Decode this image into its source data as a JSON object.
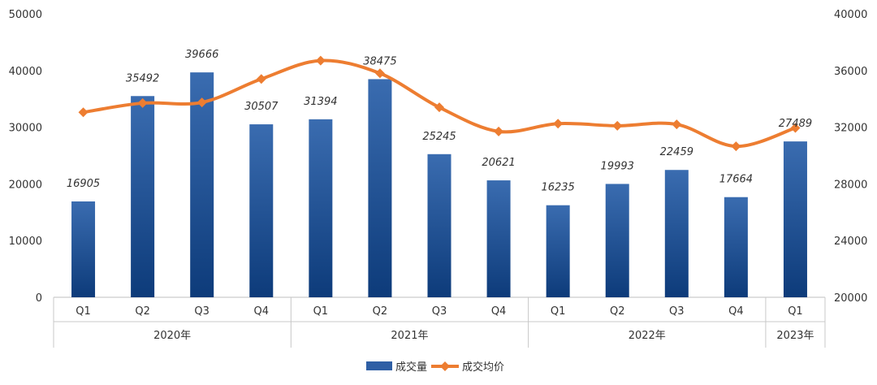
{
  "chart_data": {
    "type": "bar",
    "categories": [
      "Q1",
      "Q2",
      "Q3",
      "Q4",
      "Q1",
      "Q2",
      "Q3",
      "Q4",
      "Q1",
      "Q2",
      "Q3",
      "Q4",
      "Q1"
    ],
    "groups": [
      {
        "label": "2020年",
        "count": 4
      },
      {
        "label": "2021年",
        "count": 4
      },
      {
        "label": "2022年",
        "count": 4
      },
      {
        "label": "2023年",
        "count": 1
      }
    ],
    "series": [
      {
        "name": "成交量",
        "type": "bar",
        "axis": "left",
        "color": "#2f5fa5",
        "values": [
          16905,
          35492,
          39666,
          30507,
          31394,
          38475,
          25245,
          20621,
          16235,
          19993,
          22459,
          17664,
          27489
        ],
        "labels": [
          "16905",
          "35492",
          "39666",
          "30507",
          "31394",
          "38475",
          "25245",
          "20621",
          "16235",
          "19993",
          "22459",
          "17664",
          "27489"
        ]
      },
      {
        "name": "成交均价",
        "type": "line",
        "axis": "right",
        "color": "#ed7d31",
        "values": [
          33050,
          33700,
          33750,
          35400,
          36700,
          35800,
          33400,
          31700,
          32250,
          32100,
          32200,
          30650,
          31950
        ]
      }
    ],
    "y_left": {
      "min": 0,
      "max": 50000,
      "ticks": [
        "0",
        "10000",
        "20000",
        "30000",
        "40000",
        "50000"
      ]
    },
    "y_right": {
      "min": 20000,
      "max": 40000,
      "ticks": [
        "20000",
        "24000",
        "28000",
        "32000",
        "36000",
        "40000"
      ]
    },
    "title": "",
    "xlabel": "",
    "ylabel": "",
    "grid": false,
    "legend": "bottom-center"
  }
}
